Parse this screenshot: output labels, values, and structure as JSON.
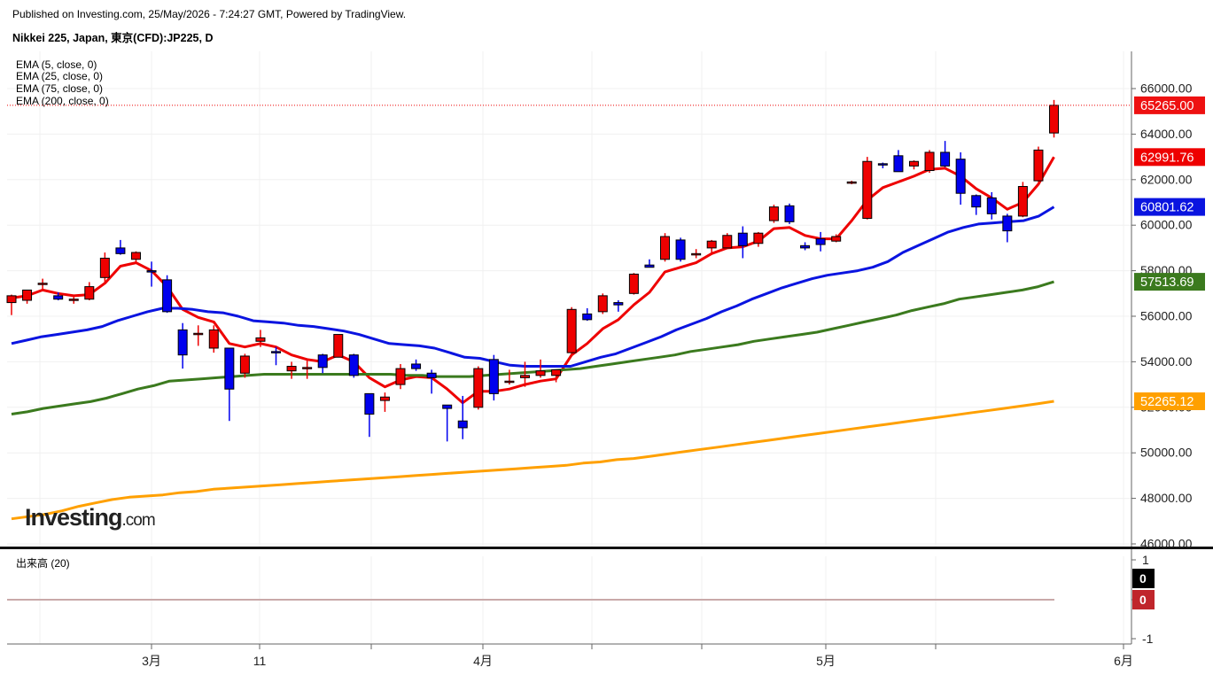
{
  "header": {
    "published": "Published on Investing.com, 25/May/2026 - 7:24:27 GMT, Powered by TradingView.",
    "symbol": "Nikkei 225, Japan, 東京(CFD):JP225, D"
  },
  "logo": {
    "text": "Investing",
    "suffix": ".com"
  },
  "indicators": [
    "EMA (5, close, 0)",
    "EMA (25, close, 0)",
    "EMA (75, close, 0)",
    "EMA (200, close, 0)"
  ],
  "volume_label": "出来高 (20)",
  "colors": {
    "up": "#ee0000",
    "down": "#0000ee",
    "ema5": "#ee0000",
    "ema25": "#0a14e0",
    "ema75": "#3b7a1e",
    "ema200": "#ffa000",
    "grid": "#f0f0f0"
  },
  "chart_data": {
    "type": "candlestick",
    "ylim": [
      45600,
      67600
    ],
    "y_ticks": [
      "66000.00",
      "64000.00",
      "62000.00",
      "60000.00",
      "58000.00",
      "56000.00",
      "54000.00",
      "52000.00",
      "50000.00",
      "48000.00",
      "46000.00"
    ],
    "x_ticks": [
      "3月",
      "11",
      "4月",
      "5月",
      "6月"
    ],
    "candles": [
      {
        "o": 56600,
        "h": 56950,
        "l": 56050,
        "c": 56900
      },
      {
        "o": 56700,
        "h": 57050,
        "l": 56550,
        "c": 57150
      },
      {
        "o": 57400,
        "h": 57650,
        "l": 57200,
        "c": 57450
      },
      {
        "o": 56900,
        "h": 57050,
        "l": 56700,
        "c": 56750
      },
      {
        "o": 56700,
        "h": 56850,
        "l": 56550,
        "c": 56750
      },
      {
        "o": 56750,
        "h": 57500,
        "l": 56700,
        "c": 57300
      },
      {
        "o": 57700,
        "h": 58800,
        "l": 57500,
        "c": 58550
      },
      {
        "o": 59000,
        "h": 59350,
        "l": 58700,
        "c": 58750
      },
      {
        "o": 58500,
        "h": 58850,
        "l": 58350,
        "c": 58800
      },
      {
        "o": 58000,
        "h": 58400,
        "l": 57300,
        "c": 57950
      },
      {
        "o": 57600,
        "h": 57800,
        "l": 56150,
        "c": 56200
      },
      {
        "o": 55400,
        "h": 55700,
        "l": 53700,
        "c": 54300
      },
      {
        "o": 55200,
        "h": 55600,
        "l": 54700,
        "c": 55250
      },
      {
        "o": 54600,
        "h": 55600,
        "l": 54400,
        "c": 55400
      },
      {
        "o": 54600,
        "h": 54600,
        "l": 51400,
        "c": 52800
      },
      {
        "o": 53500,
        "h": 54350,
        "l": 53300,
        "c": 54250
      },
      {
        "o": 54900,
        "h": 55400,
        "l": 54650,
        "c": 55050
      },
      {
        "o": 54450,
        "h": 54650,
        "l": 53850,
        "c": 54400
      },
      {
        "o": 53600,
        "h": 54000,
        "l": 53250,
        "c": 53800
      },
      {
        "o": 53700,
        "h": 54050,
        "l": 53250,
        "c": 53750
      },
      {
        "o": 54300,
        "h": 54350,
        "l": 53500,
        "c": 53750
      },
      {
        "o": 54200,
        "h": 55200,
        "l": 54200,
        "c": 55200
      },
      {
        "o": 54300,
        "h": 54350,
        "l": 53300,
        "c": 53400
      },
      {
        "o": 52600,
        "h": 52600,
        "l": 50700,
        "c": 51700
      },
      {
        "o": 52300,
        "h": 52650,
        "l": 51800,
        "c": 52450
      },
      {
        "o": 53000,
        "h": 53900,
        "l": 52800,
        "c": 53700
      },
      {
        "o": 53900,
        "h": 54100,
        "l": 53600,
        "c": 53700
      },
      {
        "o": 53500,
        "h": 53650,
        "l": 52600,
        "c": 53300
      },
      {
        "o": 52100,
        "h": 52100,
        "l": 50500,
        "c": 51950
      },
      {
        "o": 51400,
        "h": 52500,
        "l": 50600,
        "c": 51100
      },
      {
        "o": 52000,
        "h": 53800,
        "l": 51900,
        "c": 53700
      },
      {
        "o": 54100,
        "h": 54300,
        "l": 52300,
        "c": 52600
      },
      {
        "o": 53100,
        "h": 53650,
        "l": 53000,
        "c": 53150
      },
      {
        "o": 53300,
        "h": 54000,
        "l": 52900,
        "c": 53400
      },
      {
        "o": 53400,
        "h": 54100,
        "l": 53300,
        "c": 53600
      },
      {
        "o": 53400,
        "h": 53600,
        "l": 53100,
        "c": 53650
      },
      {
        "o": 54400,
        "h": 56400,
        "l": 54300,
        "c": 56300
      },
      {
        "o": 56100,
        "h": 56350,
        "l": 55800,
        "c": 55850
      },
      {
        "o": 56200,
        "h": 57000,
        "l": 56100,
        "c": 56900
      },
      {
        "o": 56600,
        "h": 56700,
        "l": 56200,
        "c": 56500
      },
      {
        "o": 57000,
        "h": 57900,
        "l": 56950,
        "c": 57850
      },
      {
        "o": 58250,
        "h": 58500,
        "l": 58150,
        "c": 58150
      },
      {
        "o": 58500,
        "h": 59650,
        "l": 58400,
        "c": 59500
      },
      {
        "o": 59350,
        "h": 59450,
        "l": 58400,
        "c": 58500
      },
      {
        "o": 58750,
        "h": 58950,
        "l": 58550,
        "c": 58750
      },
      {
        "o": 59000,
        "h": 59350,
        "l": 58800,
        "c": 59300
      },
      {
        "o": 59000,
        "h": 59650,
        "l": 58950,
        "c": 59550
      },
      {
        "o": 59650,
        "h": 59950,
        "l": 58550,
        "c": 59100
      },
      {
        "o": 59200,
        "h": 59700,
        "l": 59050,
        "c": 59650
      },
      {
        "o": 60200,
        "h": 60900,
        "l": 60100,
        "c": 60800
      },
      {
        "o": 60850,
        "h": 60950,
        "l": 60050,
        "c": 60150
      },
      {
        "o": 59100,
        "h": 59250,
        "l": 58900,
        "c": 59000
      },
      {
        "o": 59400,
        "h": 59700,
        "l": 58850,
        "c": 59150
      },
      {
        "o": 59300,
        "h": 59600,
        "l": 59250,
        "c": 59500
      },
      {
        "o": 61850,
        "h": 61950,
        "l": 61800,
        "c": 61900
      },
      {
        "o": 60300,
        "h": 63000,
        "l": 60250,
        "c": 62800
      },
      {
        "o": 62700,
        "h": 62750,
        "l": 62500,
        "c": 62650
      },
      {
        "o": 63050,
        "h": 63300,
        "l": 62350,
        "c": 62350
      },
      {
        "o": 62600,
        "h": 62850,
        "l": 62450,
        "c": 62800
      },
      {
        "o": 62400,
        "h": 63300,
        "l": 62300,
        "c": 63200
      },
      {
        "o": 63200,
        "h": 63700,
        "l": 62550,
        "c": 62600
      },
      {
        "o": 62900,
        "h": 63200,
        "l": 60900,
        "c": 61400
      },
      {
        "o": 61300,
        "h": 61350,
        "l": 60450,
        "c": 60800
      },
      {
        "o": 61200,
        "h": 61450,
        "l": 60250,
        "c": 60500
      },
      {
        "o": 60400,
        "h": 60500,
        "l": 59250,
        "c": 59750
      },
      {
        "o": 60400,
        "h": 61900,
        "l": 60350,
        "c": 61700
      },
      {
        "o": 61950,
        "h": 63450,
        "l": 61900,
        "c": 63300
      },
      {
        "o": 64050,
        "h": 65500,
        "l": 63850,
        "c": 65265
      }
    ],
    "series": [
      {
        "name": "EMA (5, close, 0)",
        "color": "#ee0000",
        "last_label": "62991.76",
        "values": [
          56800,
          56900,
          57150,
          57000,
          56900,
          56950,
          57450,
          58200,
          58350,
          58000,
          57300,
          56300,
          55950,
          55750,
          54800,
          54650,
          54800,
          54650,
          54300,
          54100,
          54000,
          54300,
          54000,
          53300,
          52900,
          53200,
          53350,
          53300,
          52800,
          52200,
          52700,
          52700,
          52800,
          53000,
          53150,
          53250,
          54300,
          54800,
          55450,
          55850,
          56500,
          57050,
          57950,
          58150,
          58350,
          58750,
          59000,
          59050,
          59300,
          59850,
          59900,
          59550,
          59400,
          59400,
          60200,
          61100,
          61650,
          61900,
          62150,
          62450,
          62500,
          62150,
          61600,
          61200,
          60700,
          61000,
          61800,
          62992
        ]
      },
      {
        "name": "EMA (25, close, 0)",
        "color": "#0a14e0",
        "last_label": "60801.62",
        "values": [
          54800,
          54950,
          55100,
          55200,
          55300,
          55400,
          55550,
          55800,
          56000,
          56200,
          56350,
          56350,
          56300,
          56200,
          56150,
          56000,
          55800,
          55750,
          55700,
          55600,
          55550,
          55450,
          55350,
          55200,
          55000,
          54800,
          54750,
          54700,
          54600,
          54400,
          54200,
          54150,
          54000,
          53850,
          53800,
          53800,
          53800,
          53800,
          54000,
          54200,
          54350,
          54600,
          54850,
          55100,
          55400,
          55650,
          55900,
          56200,
          56450,
          56750,
          57000,
          57250,
          57450,
          57650,
          57800,
          57900,
          58000,
          58150,
          58400,
          58800,
          59100,
          59400,
          59700,
          59900,
          60050,
          60100,
          60150,
          60200,
          60400,
          60802
        ]
      },
      {
        "name": "EMA (75, close, 0)",
        "color": "#3b7a1e",
        "last_label": "57513.69",
        "values": [
          51700,
          51800,
          51950,
          52050,
          52150,
          52250,
          52400,
          52600,
          52800,
          52950,
          53150,
          53200,
          53250,
          53300,
          53350,
          53400,
          53450,
          53450,
          53450,
          53450,
          53450,
          53450,
          53450,
          53450,
          53450,
          53400,
          53400,
          53350,
          53350,
          53350,
          53400,
          53450,
          53500,
          53550,
          53600,
          53650,
          53700,
          53800,
          53900,
          54000,
          54100,
          54200,
          54300,
          54450,
          54550,
          54650,
          54750,
          54900,
          55000,
          55100,
          55200,
          55300,
          55450,
          55600,
          55750,
          55900,
          56050,
          56250,
          56400,
          56550,
          56750,
          56850,
          56950,
          57050,
          57150,
          57300,
          57514
        ]
      },
      {
        "name": "EMA (200, close, 0)",
        "color": "#ffa000",
        "last_label": "52265.12",
        "values": [
          47100,
          47200,
          47300,
          47450,
          47650,
          47800,
          47950,
          48050,
          48100,
          48150,
          48250,
          48300,
          48400,
          48450,
          48500,
          48550,
          48600,
          48650,
          48700,
          48750,
          48800,
          48850,
          48900,
          48950,
          49000,
          49050,
          49100,
          49150,
          49200,
          49250,
          49300,
          49350,
          49400,
          49450,
          49550,
          49600,
          49700,
          49750,
          49850,
          49950,
          50050,
          50150,
          50250,
          50350,
          50450,
          50550,
          50650,
          50750,
          50850,
          50950,
          51050,
          51150,
          51250,
          51350,
          51450,
          51550,
          51650,
          51750,
          51850,
          51950,
          52050,
          52150,
          52266
        ]
      }
    ],
    "last_price_label": "65265.00",
    "volume": {
      "label": "出来高 (20)",
      "y_ticks": [
        "1",
        "0",
        "-1"
      ],
      "value_labels": [
        "0",
        "0"
      ]
    }
  }
}
